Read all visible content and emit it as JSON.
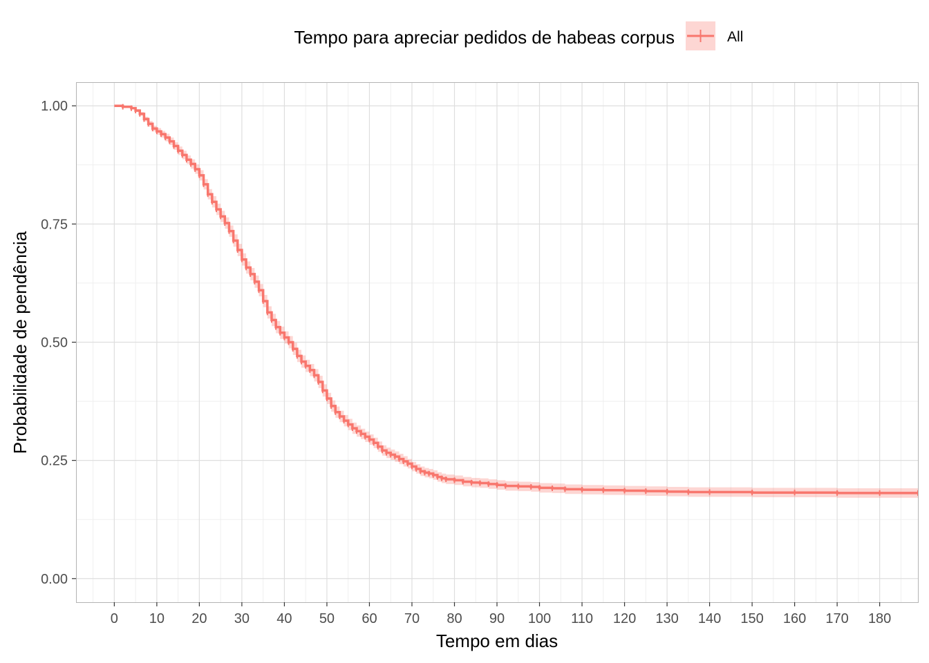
{
  "chart_data": {
    "type": "line",
    "xlabel": "Tempo em dias",
    "ylabel": "Probabilidade de pendência",
    "xlim": [
      -9,
      189
    ],
    "ylim": [
      -0.05,
      1.05
    ],
    "x_ticks": [
      0,
      10,
      20,
      30,
      40,
      50,
      60,
      70,
      80,
      90,
      100,
      110,
      120,
      130,
      140,
      150,
      160,
      170,
      180
    ],
    "y_ticks": [
      0.0,
      0.25,
      0.5,
      0.75,
      1.0
    ],
    "y_tick_labels": [
      "0.00",
      "0.25",
      "0.50",
      "0.75",
      "1.00"
    ],
    "grid": true,
    "legend": {
      "title": "Tempo para apreciar pedidos de habeas corpus",
      "position": "top",
      "entries": [
        "All"
      ]
    },
    "colors": {
      "line": "#f8766d",
      "band": "#f8766d",
      "panel_border": "#b3b3b3",
      "grid_major": "#dedede",
      "grid_minor": "#efefef"
    },
    "series": [
      {
        "name": "All",
        "curve": "step",
        "x": [
          0,
          2,
          4,
          5,
          6,
          7,
          8,
          9,
          10,
          11,
          12,
          13,
          14,
          15,
          16,
          17,
          18,
          19,
          20,
          21,
          22,
          23,
          24,
          25,
          26,
          27,
          28,
          29,
          30,
          31,
          32,
          33,
          34,
          35,
          36,
          37,
          38,
          39,
          40,
          41,
          42,
          43,
          44,
          45,
          46,
          47,
          48,
          49,
          50,
          51,
          52,
          53,
          54,
          55,
          56,
          57,
          58,
          59,
          60,
          61,
          62,
          63,
          64,
          65,
          66,
          67,
          68,
          69,
          70,
          71,
          72,
          73,
          74,
          75,
          76,
          77,
          78,
          80,
          82,
          84,
          86,
          88,
          90,
          92,
          95,
          98,
          100,
          103,
          106,
          110,
          115,
          120,
          125,
          130,
          135,
          140,
          150,
          160,
          170,
          180,
          189
        ],
        "y": [
          1.0,
          0.998,
          0.995,
          0.99,
          0.983,
          0.972,
          0.962,
          0.952,
          0.946,
          0.94,
          0.933,
          0.925,
          0.915,
          0.905,
          0.896,
          0.886,
          0.877,
          0.866,
          0.853,
          0.834,
          0.813,
          0.797,
          0.781,
          0.766,
          0.752,
          0.735,
          0.715,
          0.695,
          0.675,
          0.658,
          0.644,
          0.628,
          0.61,
          0.587,
          0.563,
          0.547,
          0.532,
          0.52,
          0.51,
          0.5,
          0.486,
          0.471,
          0.459,
          0.45,
          0.441,
          0.43,
          0.416,
          0.398,
          0.381,
          0.365,
          0.352,
          0.343,
          0.334,
          0.326,
          0.318,
          0.312,
          0.306,
          0.3,
          0.294,
          0.287,
          0.279,
          0.271,
          0.266,
          0.262,
          0.258,
          0.253,
          0.248,
          0.243,
          0.237,
          0.232,
          0.227,
          0.224,
          0.222,
          0.219,
          0.215,
          0.212,
          0.21,
          0.208,
          0.205,
          0.203,
          0.202,
          0.2,
          0.198,
          0.196,
          0.195,
          0.194,
          0.192,
          0.191,
          0.189,
          0.188,
          0.187,
          0.186,
          0.185,
          0.184,
          0.183,
          0.183,
          0.182,
          0.182,
          0.181,
          0.181,
          0.181
        ],
        "band_halfwidth": [
          0.0,
          0.001,
          0.002,
          0.003,
          0.004,
          0.005,
          0.006,
          0.006,
          0.007,
          0.007,
          0.008,
          0.008,
          0.008,
          0.009,
          0.009,
          0.009,
          0.01,
          0.01,
          0.011,
          0.011,
          0.011,
          0.012,
          0.012,
          0.012,
          0.012,
          0.012,
          0.013,
          0.013,
          0.013,
          0.013,
          0.013,
          0.013,
          0.013,
          0.013,
          0.013,
          0.013,
          0.013,
          0.013,
          0.013,
          0.013,
          0.013,
          0.013,
          0.013,
          0.013,
          0.013,
          0.013,
          0.013,
          0.013,
          0.012,
          0.012,
          0.012,
          0.012,
          0.012,
          0.012,
          0.012,
          0.012,
          0.011,
          0.011,
          0.011,
          0.011,
          0.011,
          0.011,
          0.011,
          0.011,
          0.011,
          0.011,
          0.011,
          0.01,
          0.01,
          0.01,
          0.01,
          0.01,
          0.01,
          0.01,
          0.01,
          0.01,
          0.01,
          0.01,
          0.01,
          0.01,
          0.01,
          0.01,
          0.01,
          0.01,
          0.01,
          0.01,
          0.01,
          0.01,
          0.01,
          0.01,
          0.01,
          0.01,
          0.01,
          0.01,
          0.01,
          0.01,
          0.01,
          0.01,
          0.01,
          0.01,
          0.01
        ]
      }
    ]
  }
}
